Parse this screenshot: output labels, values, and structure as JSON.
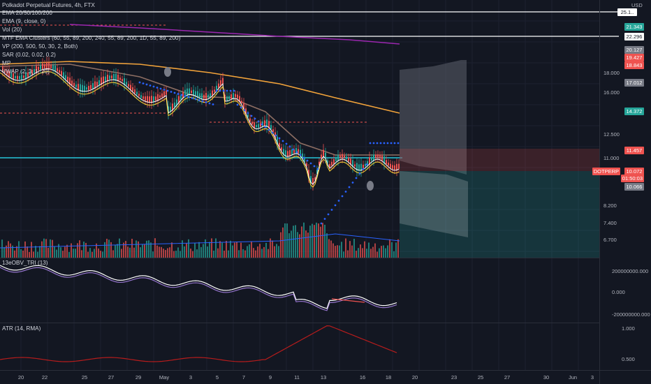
{
  "title": "Polkadot Perpetual Futures, 4h, FTX",
  "currency": "USD",
  "indicators": [
    "EMA 20/50/100/200",
    "EMA (9, close, 0)",
    "Vol (20)",
    "MTF EMA Clusters (60, 55, 89, 200, 240, 55, 89, 200, 1D, 55, 89, 200)",
    "VP (200, 500, 50, 30, 2, Both)",
    "SAR (0.02, 0.02, 0.2)",
    "MP",
    "VWAP (2, 3, 1, 20)"
  ],
  "price_tags": [
    {
      "label": "25.1..",
      "bg": "#ffffff",
      "fg": "#131722"
    },
    {
      "label": "21.343",
      "bg": "#26a69a",
      "fg": "#ffffff"
    },
    {
      "label": "22.296",
      "bg": "#ffffff",
      "fg": "#131722"
    },
    {
      "label": "20.127",
      "bg": "#787b86",
      "fg": "#ffffff"
    },
    {
      "label": "19.427",
      "bg": "#ef5350",
      "fg": "#ffffff"
    },
    {
      "label": "18.843",
      "bg": "#ef5350",
      "fg": "#ffffff"
    },
    {
      "label": "17.012",
      "bg": "#787b86",
      "fg": "#ffffff"
    },
    {
      "label": "14.372",
      "bg": "#26a69a",
      "fg": "#ffffff"
    },
    {
      "label": "11.457",
      "bg": "#ef5350",
      "fg": "#ffffff"
    },
    {
      "label": "10.066",
      "bg": "#787b86",
      "fg": "#ffffff"
    }
  ],
  "current": {
    "symbol": "DOTPERP",
    "price": "10.072",
    "countdown": "01:50:03",
    "color": "#ef5350"
  },
  "price_axis": [
    "18.000",
    "16.000",
    "12.500",
    "11.000",
    "8.200",
    "7.400",
    "6.700"
  ],
  "sub1": {
    "label": "13eOBV_TRI (13)",
    "ticks": [
      "200000000.000",
      "0.000",
      "-200000000.000"
    ]
  },
  "sub2": {
    "label": "ATR (14, RMA)",
    "ticks": [
      "1.000",
      "0.500"
    ]
  },
  "time_axis": [
    "20",
    "22",
    "25",
    "27",
    "29",
    "May",
    "3",
    "5",
    "7",
    "9",
    "11",
    "13",
    "16",
    "18",
    "20",
    "23",
    "25",
    "27",
    "30",
    "Jun",
    "3"
  ],
  "colors": {
    "bg": "#131722",
    "up": "#26a69a",
    "down": "#ef5350",
    "ema_orange": "#f2a33a",
    "ema_purple": "#9c27b0",
    "sar": "#2962ff",
    "cyan": "#26c6da"
  }
}
